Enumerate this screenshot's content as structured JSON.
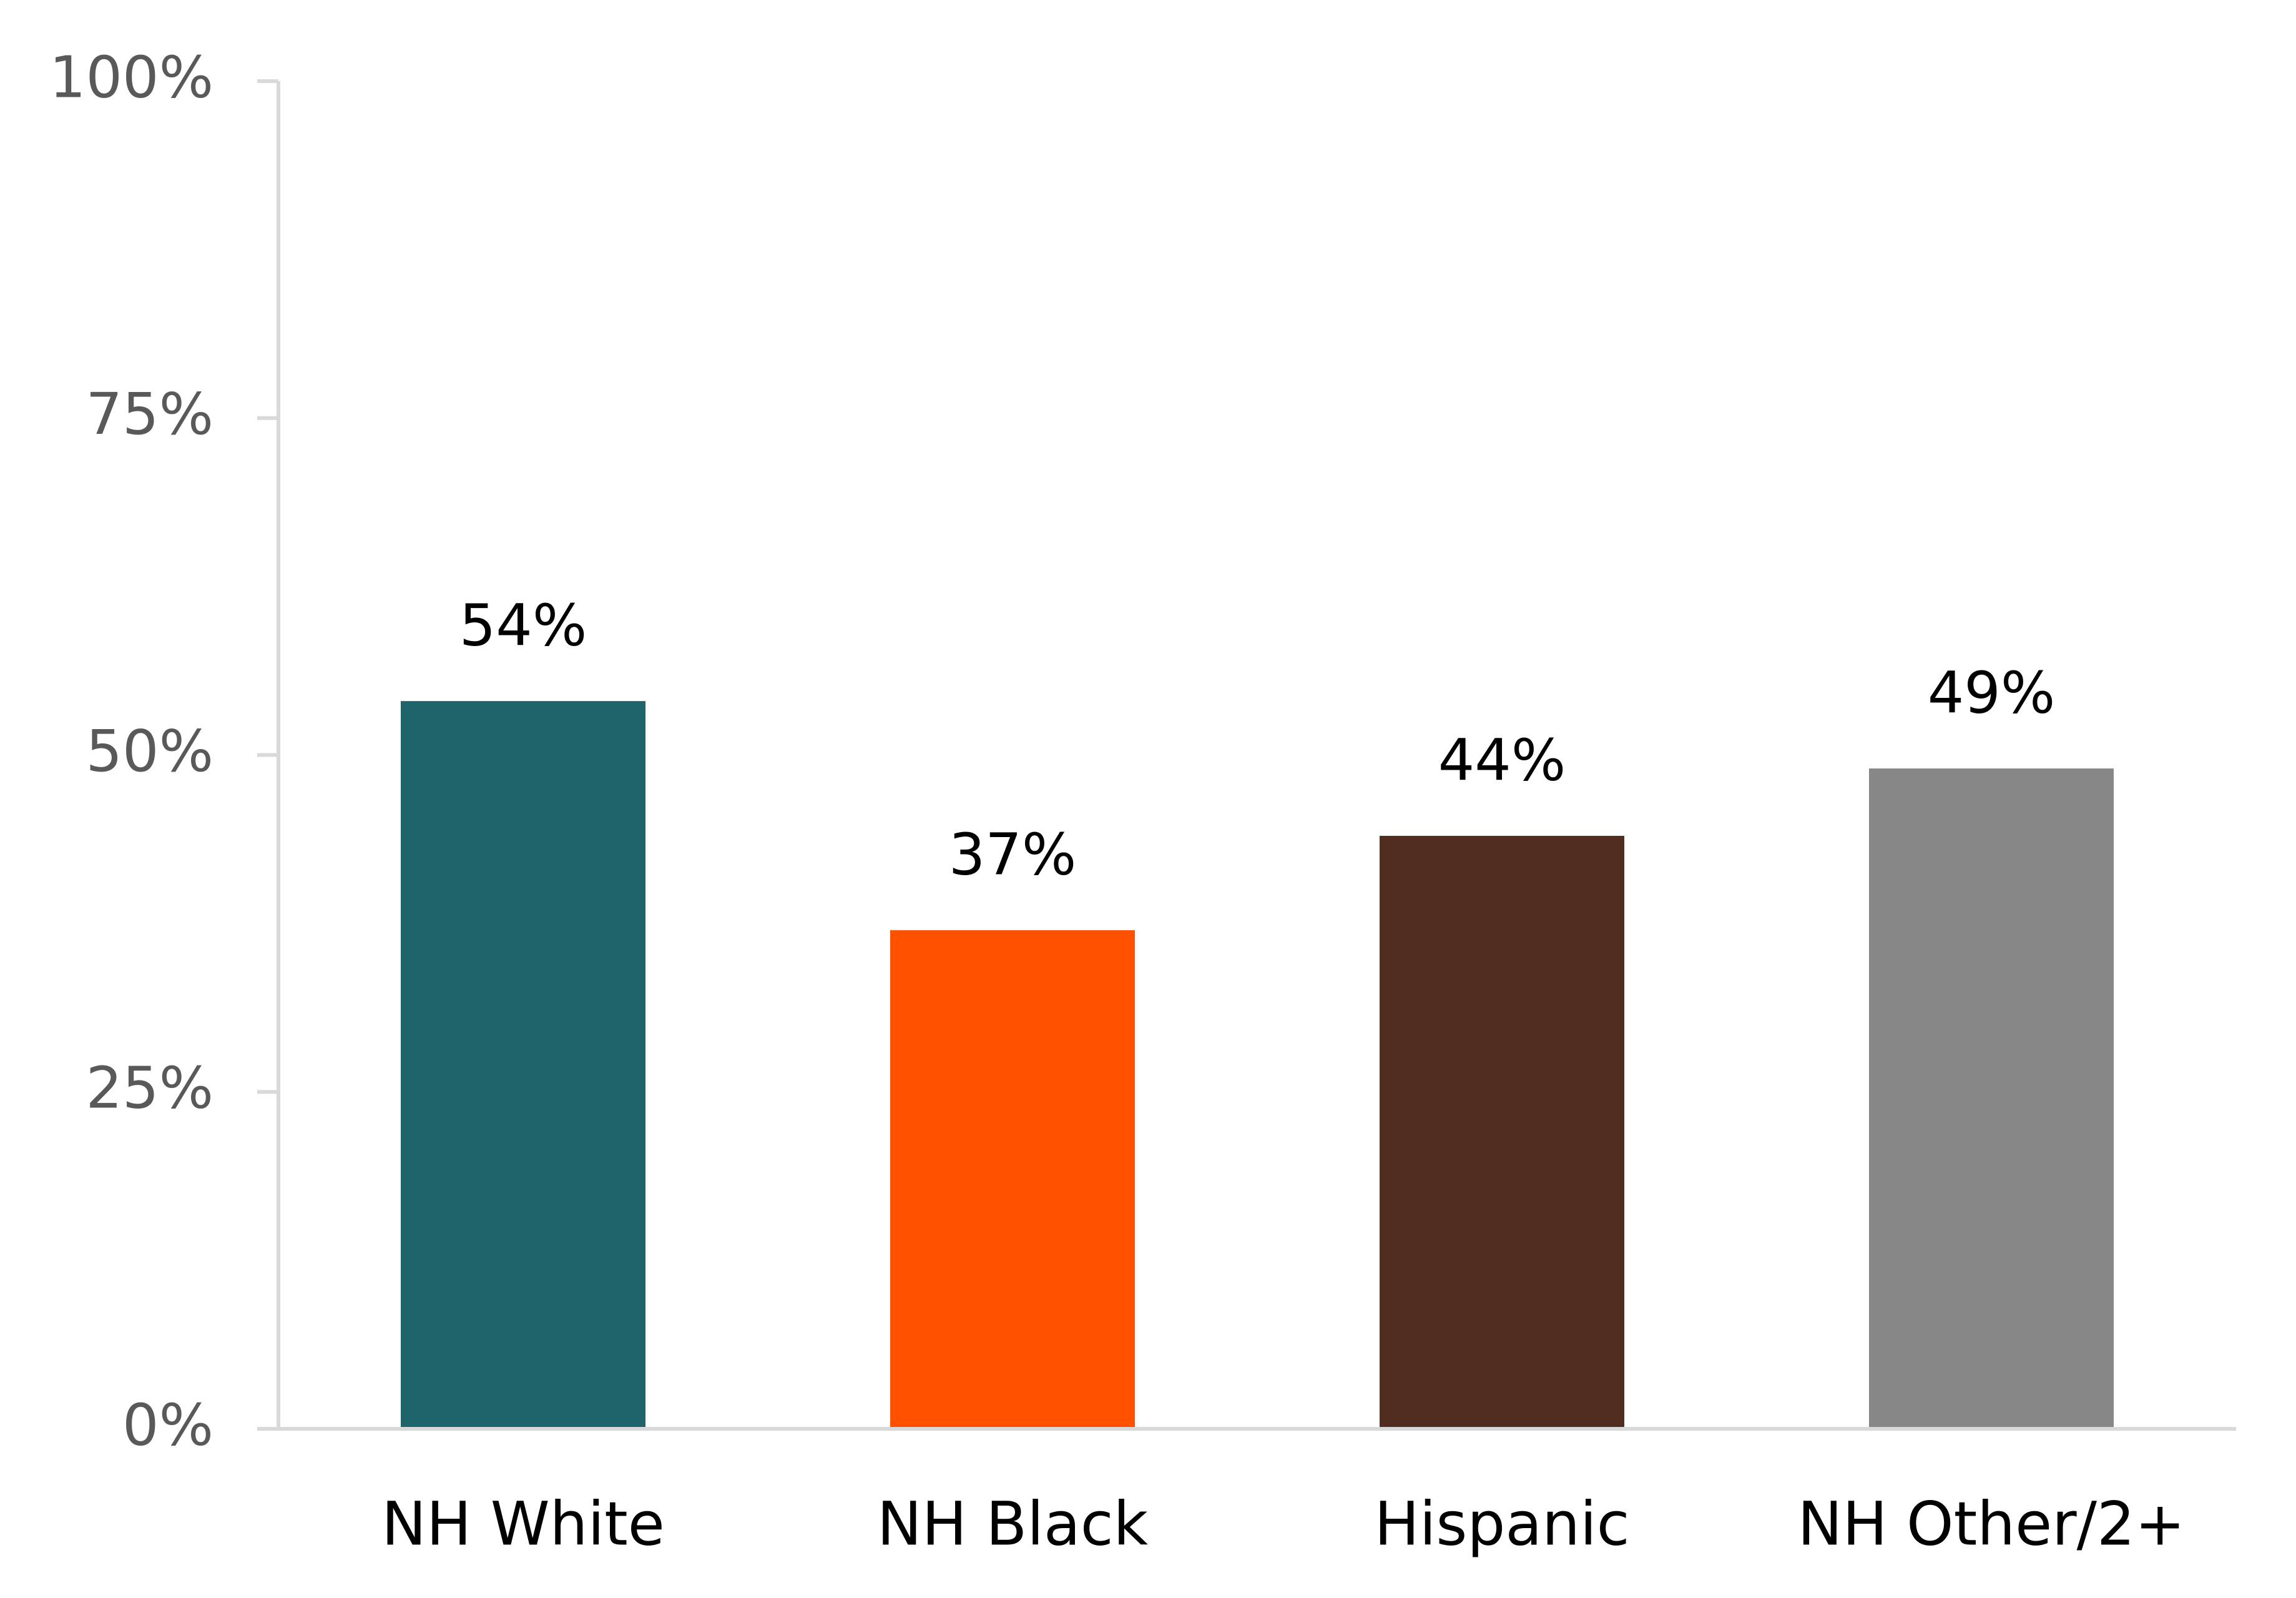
{
  "chart_data": {
    "type": "bar",
    "categories": [
      "NH White",
      "NH Black",
      "Hispanic",
      "NH Other/2+"
    ],
    "values": [
      54,
      37,
      44,
      49
    ],
    "value_labels": [
      "54%",
      "37%",
      "44%",
      "49%"
    ],
    "colors": [
      "#1f636b",
      "#ff5000",
      "#512d20",
      "#878787"
    ],
    "ylim": [
      0,
      100
    ],
    "yticks": [
      {
        "value": 0,
        "label": "0%"
      },
      {
        "value": 25,
        "label": "25%"
      },
      {
        "value": 50,
        "label": "50%"
      },
      {
        "value": 75,
        "label": "75%"
      },
      {
        "value": 100,
        "label": "100%"
      }
    ],
    "grid": false
  }
}
